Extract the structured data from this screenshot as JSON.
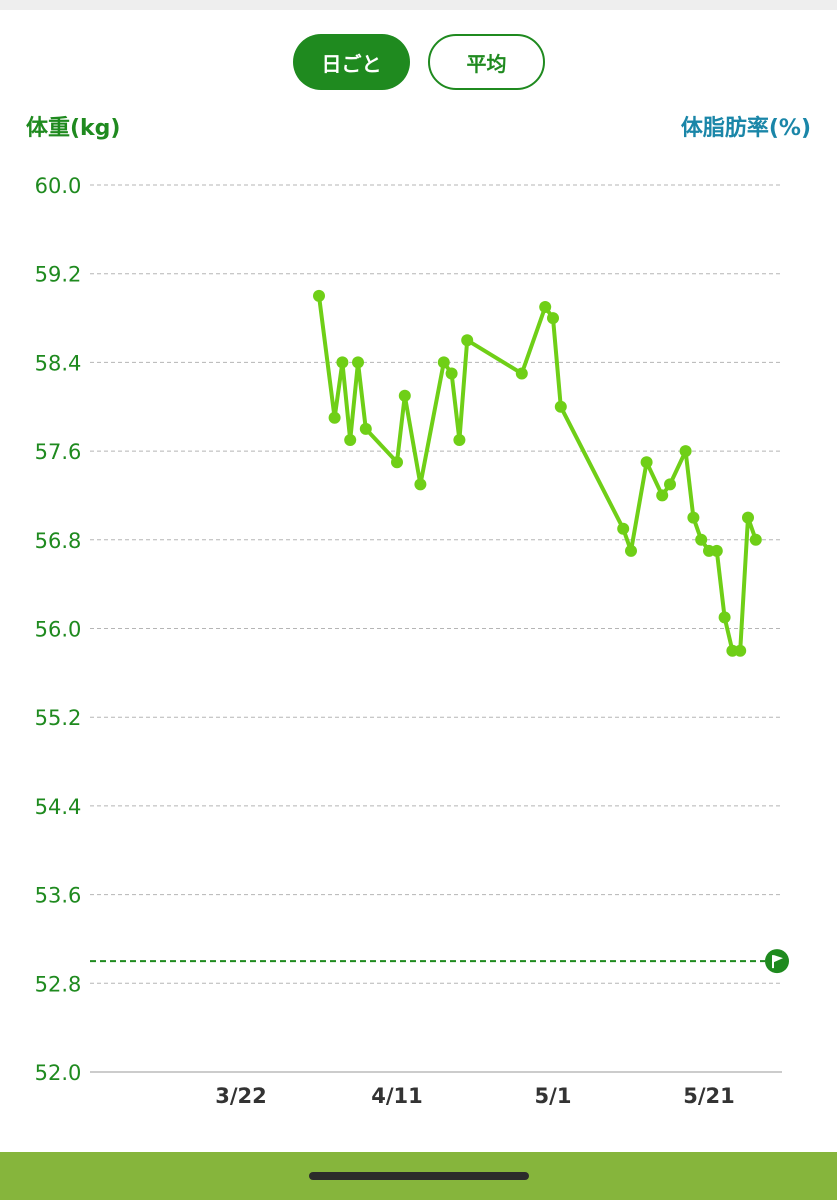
{
  "tabs": [
    {
      "label": "日ごと",
      "selected": true
    },
    {
      "label": "平均",
      "selected": false
    }
  ],
  "axis_titles": {
    "left": "体重(kg)",
    "right": "体脂肪率(%)"
  },
  "colors": {
    "accent": "#1f8a1f",
    "line": "#6fcf17",
    "right_axis": "#1a86a8",
    "bottom_bar": "#86b53c"
  },
  "chart_data": {
    "type": "line",
    "ylabel": "体重(kg)",
    "y2label": "体脂肪率(%)",
    "ylim": [
      52.0,
      60.0
    ],
    "yticks": [
      "60.0",
      "59.2",
      "58.4",
      "57.6",
      "56.8",
      "56.0",
      "55.2",
      "54.4",
      "53.6",
      "52.8",
      "52.0"
    ],
    "xticks": [
      {
        "label": "3/22",
        "date": "2024-03-22"
      },
      {
        "label": "4/11",
        "date": "2024-04-11"
      },
      {
        "label": "5/1",
        "date": "2024-05-01"
      },
      {
        "label": "5/21",
        "date": "2024-05-21"
      }
    ],
    "goal": {
      "value": 53.0,
      "icon": "flag-icon"
    },
    "series": [
      {
        "values": [
          {
            "x": "2024-04-01",
            "y": 59.0
          },
          {
            "x": "2024-04-03",
            "y": 57.9
          },
          {
            "x": "2024-04-04",
            "y": 58.4
          },
          {
            "x": "2024-04-05",
            "y": 57.7
          },
          {
            "x": "2024-04-06",
            "y": 58.4
          },
          {
            "x": "2024-04-07",
            "y": 57.8
          },
          {
            "x": "2024-04-11",
            "y": 57.5
          },
          {
            "x": "2024-04-12",
            "y": 58.1
          },
          {
            "x": "2024-04-14",
            "y": 57.3
          },
          {
            "x": "2024-04-17",
            "y": 58.4
          },
          {
            "x": "2024-04-18",
            "y": 58.3
          },
          {
            "x": "2024-04-19",
            "y": 57.7
          },
          {
            "x": "2024-04-20",
            "y": 58.6
          },
          {
            "x": "2024-04-27",
            "y": 58.3
          },
          {
            "x": "2024-04-30",
            "y": 58.9
          },
          {
            "x": "2024-05-01",
            "y": 58.8
          },
          {
            "x": "2024-05-02",
            "y": 58.0
          },
          {
            "x": "2024-05-10",
            "y": 56.9
          },
          {
            "x": "2024-05-11",
            "y": 56.7
          },
          {
            "x": "2024-05-13",
            "y": 57.5
          },
          {
            "x": "2024-05-15",
            "y": 57.2
          },
          {
            "x": "2024-05-16",
            "y": 57.3
          },
          {
            "x": "2024-05-18",
            "y": 57.6
          },
          {
            "x": "2024-05-19",
            "y": 57.0
          },
          {
            "x": "2024-05-20",
            "y": 56.8
          },
          {
            "x": "2024-05-21",
            "y": 56.7
          },
          {
            "x": "2024-05-22",
            "y": 56.7
          },
          {
            "x": "2024-05-23",
            "y": 56.1
          },
          {
            "x": "2024-05-24",
            "y": 55.8
          },
          {
            "x": "2024-05-25",
            "y": 55.8
          },
          {
            "x": "2024-05-26",
            "y": 57.0
          },
          {
            "x": "2024-05-27",
            "y": 56.8
          }
        ]
      }
    ]
  }
}
